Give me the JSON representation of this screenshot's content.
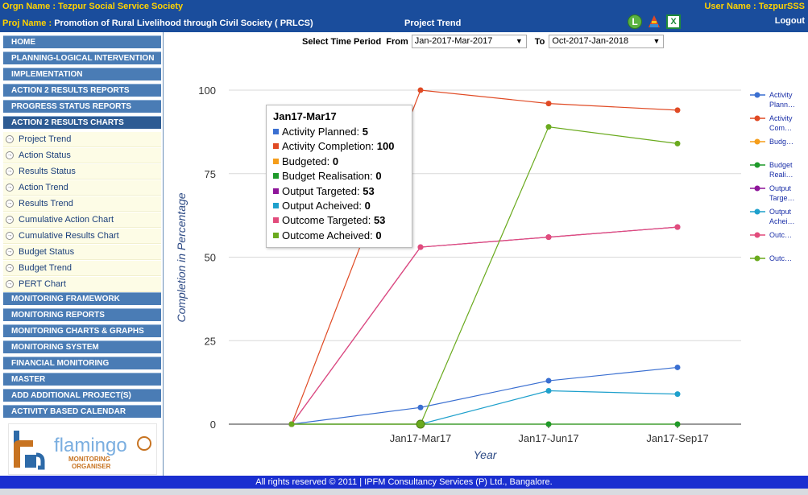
{
  "header": {
    "orgn_label": "Orgn Name :",
    "orgn_value": "Tezpur Social Service Society",
    "proj_label": "Proj Name  :",
    "proj_value": "Promotion of Rural Livelihood through Civil Society ( PRLCS)",
    "page_title": "Project Trend",
    "user_label": "User Name : TezpurSSS",
    "logout": "Logout",
    "icons": [
      "line-chart-icon",
      "pyramid-chart-icon",
      "excel-export-icon"
    ]
  },
  "sidebar": {
    "top_items": [
      "HOME",
      "PLANNING-LOGICAL INTERVENTION",
      "IMPLEMENTATION",
      "ACTION 2 RESULTS REPORTS",
      "PROGRESS STATUS REPORTS",
      "ACTION 2 RESULTS CHARTS"
    ],
    "sub_items": [
      "Project Trend",
      "Action Status",
      "Results Status",
      "Action Trend",
      "Results Trend",
      "Cumulative Action Chart",
      "Cumulative Results Chart",
      "Budget Status",
      "Budget Trend",
      "PERT Chart"
    ],
    "bottom_items": [
      "MONITORING FRAMEWORK",
      "MONITORING REPORTS",
      "MONITORING CHARTS & GRAPHS",
      "MONITORING SYSTEM",
      "FINANCIAL MONITORING",
      "MASTER",
      "ADD ADDITIONAL PROJECT(S)",
      "ACTIVITY BASED CALENDAR"
    ],
    "logo_text": "flamingo",
    "logo_sub1": "MONITORING",
    "logo_sub2": "ORGANISER"
  },
  "period": {
    "label": "Select Time Period",
    "from_label": "From",
    "from_value": "Jan-2017-Mar-2017",
    "to_label": "To",
    "to_value": "Oct-2017-Jan-2018"
  },
  "chart_data": {
    "type": "line",
    "xlabel": "Year",
    "ylabel": "Completion in Percentage",
    "ylim": [
      0,
      100
    ],
    "yticks": [
      0,
      25,
      50,
      75,
      100
    ],
    "x_tick_labels": [
      "Jan17-Mar17",
      "Jan17-Jun17",
      "Jan17-Sep17"
    ],
    "grid": true,
    "legend_position": "right",
    "series": [
      {
        "name": "Activity Planned",
        "legend": "Activity Plann…",
        "color": "#3a6fd1",
        "values": [
          0,
          5,
          13,
          17
        ]
      },
      {
        "name": "Activity Completion",
        "legend": "Activity Com…",
        "color": "#e04a24",
        "values": [
          0,
          100,
          96,
          94
        ]
      },
      {
        "name": "Budgeted",
        "legend": "Budg…",
        "color": "#f59d1a",
        "values": [
          0,
          0,
          0,
          0
        ]
      },
      {
        "name": "Budget Realisation",
        "legend": "Budget Reali…",
        "color": "#1e9a2a",
        "values": [
          0,
          0,
          0,
          0
        ]
      },
      {
        "name": "Output Targeted",
        "legend": "Output Targe…",
        "color": "#8e159a",
        "values": [
          0,
          53,
          56,
          59
        ]
      },
      {
        "name": "Output Acheived",
        "legend": "Output Achei…",
        "color": "#1ea0cc",
        "values": [
          0,
          0,
          10,
          9
        ]
      },
      {
        "name": "Outcome Targeted",
        "legend": "Outc…",
        "color": "#e24c7c",
        "values": [
          0,
          53,
          56,
          59
        ]
      },
      {
        "name": "Outcome Acheived",
        "legend": "Outc…",
        "color": "#6aaa1e",
        "values": [
          0,
          0,
          89,
          84
        ]
      }
    ],
    "tooltip": {
      "title": "Jan17-Mar17",
      "rows": [
        {
          "label": "Activity Planned:",
          "value": "5",
          "color": "#3a6fd1"
        },
        {
          "label": "Activity Completion:",
          "value": "100",
          "color": "#e04a24"
        },
        {
          "label": "Budgeted:",
          "value": "0",
          "color": "#f59d1a"
        },
        {
          "label": "Budget Realisation:",
          "value": "0",
          "color": "#1e9a2a"
        },
        {
          "label": "Output Targeted:",
          "value": "53",
          "color": "#8e159a"
        },
        {
          "label": "Output Acheived:",
          "value": "0",
          "color": "#1ea0cc"
        },
        {
          "label": "Outcome Targeted:",
          "value": "53",
          "color": "#e24c7c"
        },
        {
          "label": "Outcome Acheived:",
          "value": "0",
          "color": "#6aaa1e"
        }
      ]
    }
  },
  "footer": "All rights reserved © 2011  |  IPFM Consultancy Services (P) Ltd., Bangalore."
}
